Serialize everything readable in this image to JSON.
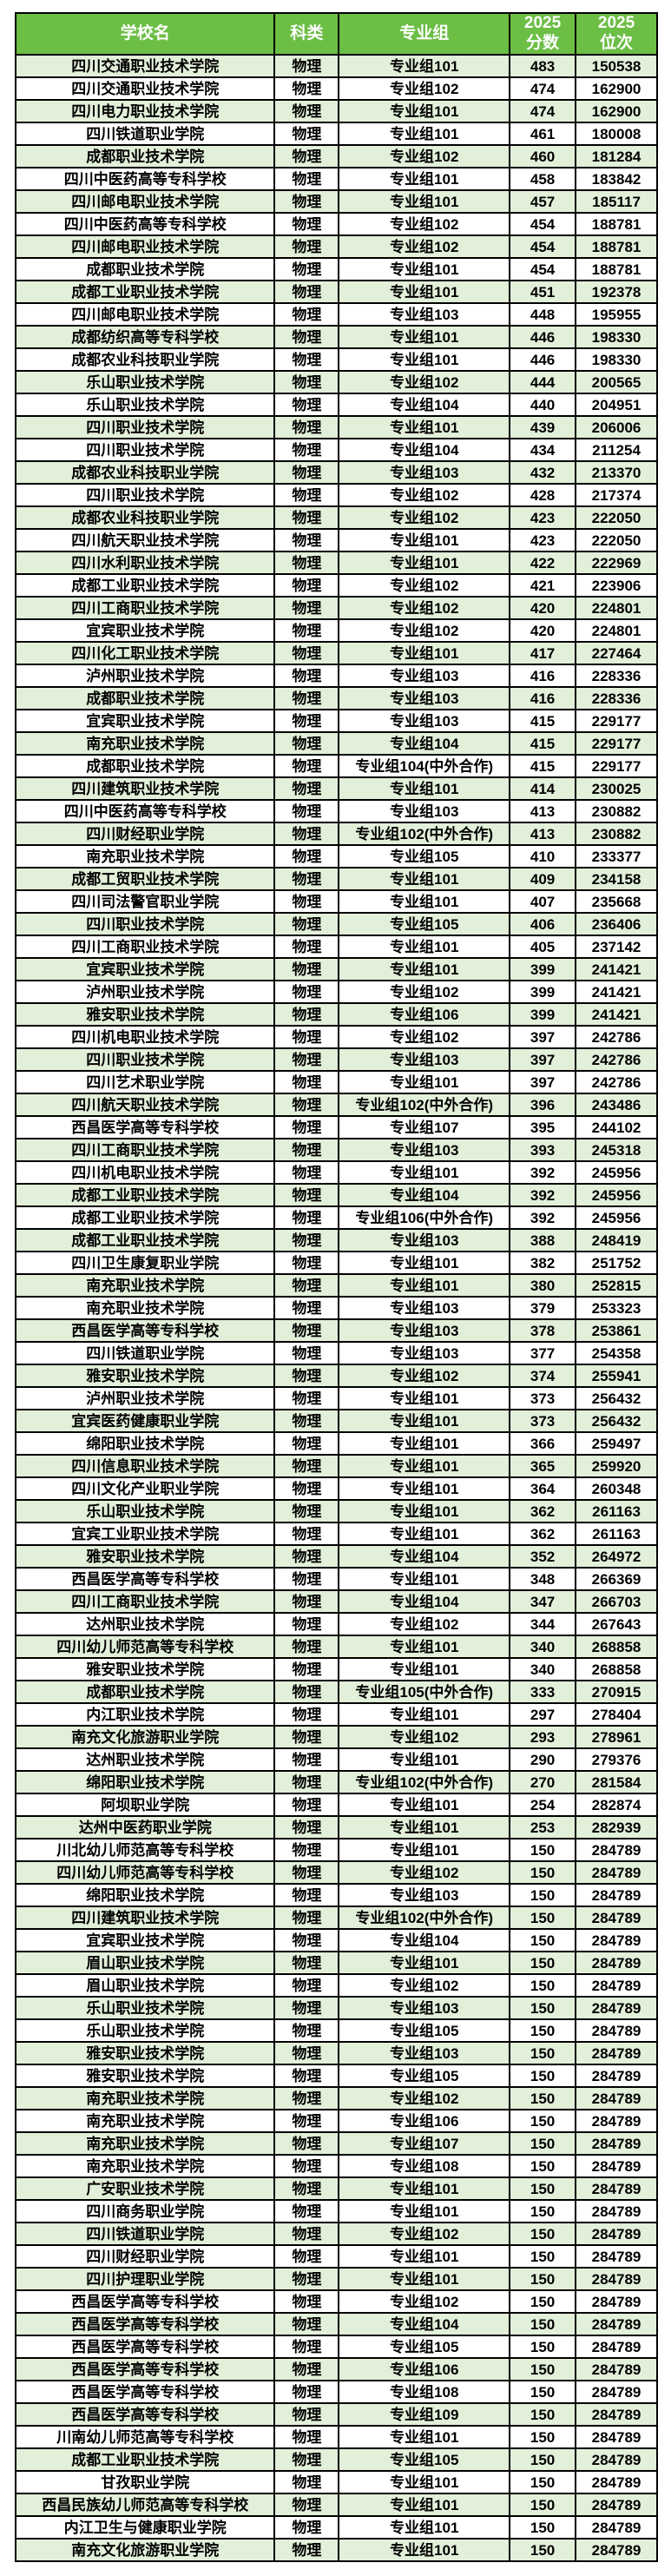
{
  "colors": {
    "header_bg": "#6CBE45",
    "header_text": "#FFFFFF",
    "stripe_green": "#E2EFD9",
    "row_white": "#FFFFFF",
    "border": "#000000",
    "page_background": "#FFFFFF"
  },
  "chart_data": {
    "type": "table",
    "columns": [
      "学校名",
      "科类",
      "专业组",
      "2025\n分数",
      "2025\n位次"
    ],
    "rows": [
      [
        "四川交通职业技术学院",
        "物理",
        "专业组101",
        483,
        150538
      ],
      [
        "四川交通职业技术学院",
        "物理",
        "专业组102",
        474,
        162900
      ],
      [
        "四川电力职业技术学院",
        "物理",
        "专业组101",
        474,
        162900
      ],
      [
        "四川铁道职业学院",
        "物理",
        "专业组101",
        461,
        180008
      ],
      [
        "成都职业技术学院",
        "物理",
        "专业组102",
        460,
        181284
      ],
      [
        "四川中医药高等专科学校",
        "物理",
        "专业组101",
        458,
        183842
      ],
      [
        "四川邮电职业技术学院",
        "物理",
        "专业组101",
        457,
        185117
      ],
      [
        "四川中医药高等专科学校",
        "物理",
        "专业组102",
        454,
        188781
      ],
      [
        "四川邮电职业技术学院",
        "物理",
        "专业组102",
        454,
        188781
      ],
      [
        "成都职业技术学院",
        "物理",
        "专业组101",
        454,
        188781
      ],
      [
        "成都工业职业技术学院",
        "物理",
        "专业组101",
        451,
        192378
      ],
      [
        "四川邮电职业技术学院",
        "物理",
        "专业组103",
        448,
        195955
      ],
      [
        "成都纺织高等专科学校",
        "物理",
        "专业组101",
        446,
        198330
      ],
      [
        "成都农业科技职业学院",
        "物理",
        "专业组101",
        446,
        198330
      ],
      [
        "乐山职业技术学院",
        "物理",
        "专业组102",
        444,
        200565
      ],
      [
        "乐山职业技术学院",
        "物理",
        "专业组104",
        440,
        204951
      ],
      [
        "四川职业技术学院",
        "物理",
        "专业组101",
        439,
        206006
      ],
      [
        "四川职业技术学院",
        "物理",
        "专业组104",
        434,
        211254
      ],
      [
        "成都农业科技职业学院",
        "物理",
        "专业组103",
        432,
        213370
      ],
      [
        "四川职业技术学院",
        "物理",
        "专业组102",
        428,
        217374
      ],
      [
        "成都农业科技职业学院",
        "物理",
        "专业组102",
        423,
        222050
      ],
      [
        "四川航天职业技术学院",
        "物理",
        "专业组101",
        423,
        222050
      ],
      [
        "四川水利职业技术学院",
        "物理",
        "专业组101",
        422,
        222969
      ],
      [
        "成都工业职业技术学院",
        "物理",
        "专业组102",
        421,
        223906
      ],
      [
        "四川工商职业技术学院",
        "物理",
        "专业组102",
        420,
        224801
      ],
      [
        "宜宾职业技术学院",
        "物理",
        "专业组102",
        420,
        224801
      ],
      [
        "四川化工职业技术学院",
        "物理",
        "专业组101",
        417,
        227464
      ],
      [
        "泸州职业技术学院",
        "物理",
        "专业组103",
        416,
        228336
      ],
      [
        "成都职业技术学院",
        "物理",
        "专业组103",
        416,
        228336
      ],
      [
        "宜宾职业技术学院",
        "物理",
        "专业组103",
        415,
        229177
      ],
      [
        "南充职业技术学院",
        "物理",
        "专业组104",
        415,
        229177
      ],
      [
        "成都职业技术学院",
        "物理",
        "专业组104(中外合作)",
        415,
        229177
      ],
      [
        "四川建筑职业技术学院",
        "物理",
        "专业组101",
        414,
        230025
      ],
      [
        "四川中医药高等专科学校",
        "物理",
        "专业组103",
        413,
        230882
      ],
      [
        "四川财经职业学院",
        "物理",
        "专业组102(中外合作)",
        413,
        230882
      ],
      [
        "南充职业技术学院",
        "物理",
        "专业组105",
        410,
        233377
      ],
      [
        "成都工贸职业技术学院",
        "物理",
        "专业组101",
        409,
        234158
      ],
      [
        "四川司法警官职业学院",
        "物理",
        "专业组101",
        407,
        235668
      ],
      [
        "四川职业技术学院",
        "物理",
        "专业组105",
        406,
        236406
      ],
      [
        "四川工商职业技术学院",
        "物理",
        "专业组101",
        405,
        237142
      ],
      [
        "宜宾职业技术学院",
        "物理",
        "专业组101",
        399,
        241421
      ],
      [
        "泸州职业技术学院",
        "物理",
        "专业组102",
        399,
        241421
      ],
      [
        "雅安职业技术学院",
        "物理",
        "专业组106",
        399,
        241421
      ],
      [
        "四川机电职业技术学院",
        "物理",
        "专业组102",
        397,
        242786
      ],
      [
        "四川职业技术学院",
        "物理",
        "专业组103",
        397,
        242786
      ],
      [
        "四川艺术职业学院",
        "物理",
        "专业组101",
        397,
        242786
      ],
      [
        "四川航天职业技术学院",
        "物理",
        "专业组102(中外合作)",
        396,
        243486
      ],
      [
        "西昌医学高等专科学校",
        "物理",
        "专业组107",
        395,
        244102
      ],
      [
        "四川工商职业技术学院",
        "物理",
        "专业组103",
        393,
        245318
      ],
      [
        "四川机电职业技术学院",
        "物理",
        "专业组101",
        392,
        245956
      ],
      [
        "成都工业职业技术学院",
        "物理",
        "专业组104",
        392,
        245956
      ],
      [
        "成都工业职业技术学院",
        "物理",
        "专业组106(中外合作)",
        392,
        245956
      ],
      [
        "成都工业职业技术学院",
        "物理",
        "专业组103",
        388,
        248419
      ],
      [
        "四川卫生康复职业学院",
        "物理",
        "专业组101",
        382,
        251752
      ],
      [
        "南充职业技术学院",
        "物理",
        "专业组101",
        380,
        252815
      ],
      [
        "南充职业技术学院",
        "物理",
        "专业组103",
        379,
        253323
      ],
      [
        "西昌医学高等专科学校",
        "物理",
        "专业组103",
        378,
        253861
      ],
      [
        "四川铁道职业学院",
        "物理",
        "专业组103",
        377,
        254358
      ],
      [
        "雅安职业技术学院",
        "物理",
        "专业组102",
        374,
        255941
      ],
      [
        "泸州职业技术学院",
        "物理",
        "专业组101",
        373,
        256432
      ],
      [
        "宜宾医药健康职业学院",
        "物理",
        "专业组101",
        373,
        256432
      ],
      [
        "绵阳职业技术学院",
        "物理",
        "专业组101",
        366,
        259497
      ],
      [
        "四川信息职业技术学院",
        "物理",
        "专业组101",
        365,
        259920
      ],
      [
        "四川文化产业职业学院",
        "物理",
        "专业组101",
        364,
        260348
      ],
      [
        "乐山职业技术学院",
        "物理",
        "专业组101",
        362,
        261163
      ],
      [
        "宜宾工业职业技术学院",
        "物理",
        "专业组101",
        362,
        261163
      ],
      [
        "雅安职业技术学院",
        "物理",
        "专业组104",
        352,
        264972
      ],
      [
        "西昌医学高等专科学校",
        "物理",
        "专业组101",
        348,
        266369
      ],
      [
        "四川工商职业技术学院",
        "物理",
        "专业组104",
        347,
        266703
      ],
      [
        "达州职业技术学院",
        "物理",
        "专业组102",
        344,
        267643
      ],
      [
        "四川幼儿师范高等专科学校",
        "物理",
        "专业组101",
        340,
        268858
      ],
      [
        "雅安职业技术学院",
        "物理",
        "专业组101",
        340,
        268858
      ],
      [
        "成都职业技术学院",
        "物理",
        "专业组105(中外合作)",
        333,
        270915
      ],
      [
        "内江职业技术学院",
        "物理",
        "专业组101",
        297,
        278404
      ],
      [
        "南充文化旅游职业学院",
        "物理",
        "专业组102",
        293,
        278961
      ],
      [
        "达州职业技术学院",
        "物理",
        "专业组101",
        290,
        279376
      ],
      [
        "绵阳职业技术学院",
        "物理",
        "专业组102(中外合作)",
        270,
        281584
      ],
      [
        "阿坝职业学院",
        "物理",
        "专业组101",
        254,
        282874
      ],
      [
        "达州中医药职业学院",
        "物理",
        "专业组101",
        253,
        282939
      ],
      [
        "川北幼儿师范高等专科学校",
        "物理",
        "专业组101",
        150,
        284789
      ],
      [
        "四川幼儿师范高等专科学校",
        "物理",
        "专业组102",
        150,
        284789
      ],
      [
        "绵阳职业技术学院",
        "物理",
        "专业组103",
        150,
        284789
      ],
      [
        "四川建筑职业技术学院",
        "物理",
        "专业组102(中外合作)",
        150,
        284789
      ],
      [
        "宜宾职业技术学院",
        "物理",
        "专业组104",
        150,
        284789
      ],
      [
        "眉山职业技术学院",
        "物理",
        "专业组101",
        150,
        284789
      ],
      [
        "眉山职业技术学院",
        "物理",
        "专业组102",
        150,
        284789
      ],
      [
        "乐山职业技术学院",
        "物理",
        "专业组103",
        150,
        284789
      ],
      [
        "乐山职业技术学院",
        "物理",
        "专业组105",
        150,
        284789
      ],
      [
        "雅安职业技术学院",
        "物理",
        "专业组103",
        150,
        284789
      ],
      [
        "雅安职业技术学院",
        "物理",
        "专业组105",
        150,
        284789
      ],
      [
        "南充职业技术学院",
        "物理",
        "专业组102",
        150,
        284789
      ],
      [
        "南充职业技术学院",
        "物理",
        "专业组106",
        150,
        284789
      ],
      [
        "南充职业技术学院",
        "物理",
        "专业组107",
        150,
        284789
      ],
      [
        "南充职业技术学院",
        "物理",
        "专业组108",
        150,
        284789
      ],
      [
        "广安职业技术学院",
        "物理",
        "专业组101",
        150,
        284789
      ],
      [
        "四川商务职业学院",
        "物理",
        "专业组101",
        150,
        284789
      ],
      [
        "四川铁道职业学院",
        "物理",
        "专业组102",
        150,
        284789
      ],
      [
        "四川财经职业学院",
        "物理",
        "专业组101",
        150,
        284789
      ],
      [
        "四川护理职业学院",
        "物理",
        "专业组101",
        150,
        284789
      ],
      [
        "西昌医学高等专科学校",
        "物理",
        "专业组102",
        150,
        284789
      ],
      [
        "西昌医学高等专科学校",
        "物理",
        "专业组104",
        150,
        284789
      ],
      [
        "西昌医学高等专科学校",
        "物理",
        "专业组105",
        150,
        284789
      ],
      [
        "西昌医学高等专科学校",
        "物理",
        "专业组106",
        150,
        284789
      ],
      [
        "西昌医学高等专科学校",
        "物理",
        "专业组108",
        150,
        284789
      ],
      [
        "西昌医学高等专科学校",
        "物理",
        "专业组109",
        150,
        284789
      ],
      [
        "川南幼儿师范高等专科学校",
        "物理",
        "专业组101",
        150,
        284789
      ],
      [
        "成都工业职业技术学院",
        "物理",
        "专业组105",
        150,
        284789
      ],
      [
        "甘孜职业学院",
        "物理",
        "专业组101",
        150,
        284789
      ],
      [
        "西昌民族幼儿师范高等专科学校",
        "物理",
        "专业组101",
        150,
        284789
      ],
      [
        "内江卫生与健康职业学院",
        "物理",
        "专业组101",
        150,
        284789
      ],
      [
        "南充文化旅游职业学院",
        "物理",
        "专业组101",
        150,
        284789
      ]
    ]
  }
}
